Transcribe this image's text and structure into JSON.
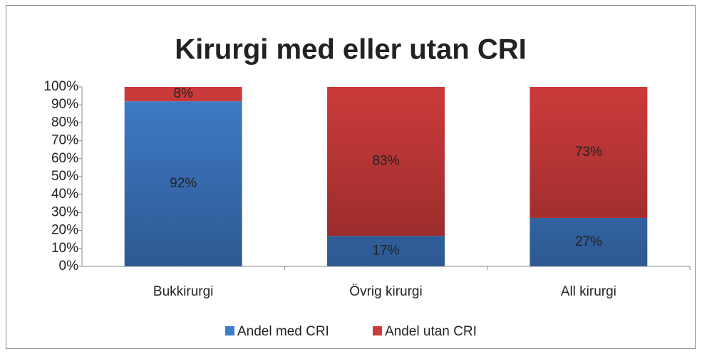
{
  "chart_data": {
    "type": "stacked_bar",
    "title": "Kirurgi med eller utan CRI",
    "categories": [
      "Bukkirurgi",
      "Övrig kirurgi",
      "All kirurgi"
    ],
    "series": [
      {
        "name": "Andel med CRI",
        "color": "#3f7cc9",
        "values": [
          92,
          17,
          27
        ],
        "value_labels": [
          "92%",
          "17%",
          "27%"
        ]
      },
      {
        "name": "Andel utan CRI",
        "color": "#cc3b3b",
        "values": [
          8,
          83,
          73
        ],
        "value_labels": [
          "8%",
          "83%",
          "73%"
        ]
      }
    ],
    "ylim": [
      0,
      100
    ],
    "yticks": [
      {
        "value": 0,
        "label": "0%"
      },
      {
        "value": 10,
        "label": "10%"
      },
      {
        "value": 20,
        "label": "20%"
      },
      {
        "value": 30,
        "label": "30%"
      },
      {
        "value": 40,
        "label": "40%"
      },
      {
        "value": 50,
        "label": "50%"
      },
      {
        "value": 60,
        "label": "60%"
      },
      {
        "value": 70,
        "label": "70%"
      },
      {
        "value": 80,
        "label": "80%"
      },
      {
        "value": 90,
        "label": "90%"
      },
      {
        "value": 100,
        "label": "100%"
      }
    ],
    "legend": "bottom"
  }
}
